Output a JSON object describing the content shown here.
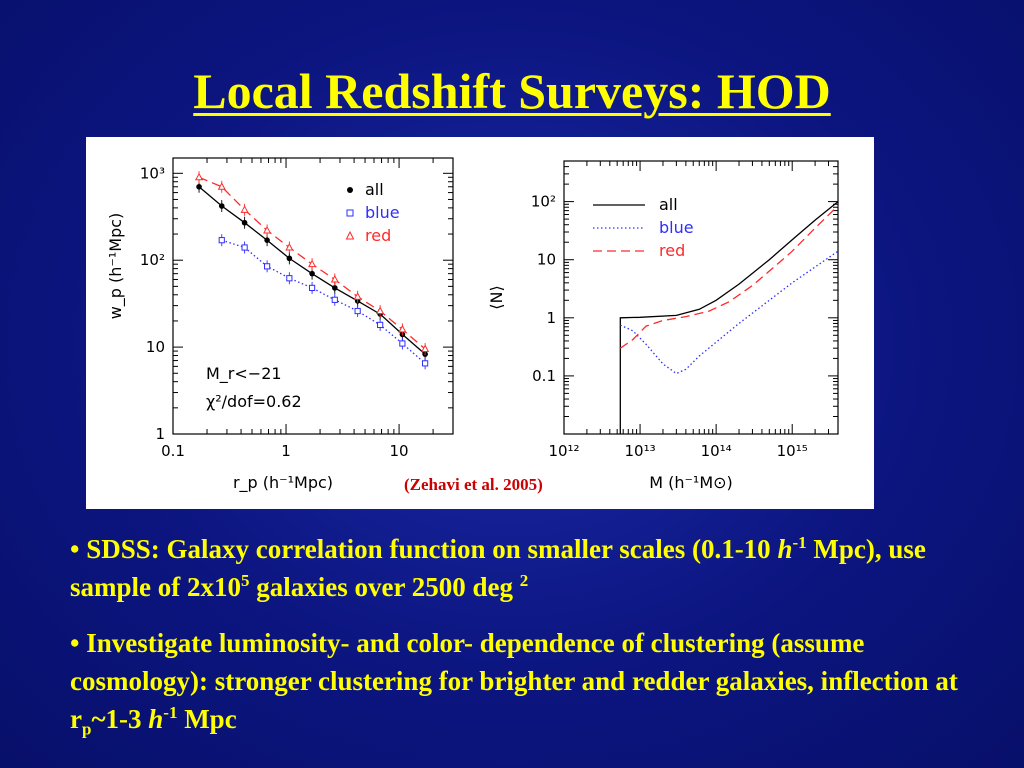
{
  "title": "Local Redshift Surveys: HOD",
  "citation": "(Zehavi et al. 2005)",
  "colors": {
    "title": "#ffff00",
    "citation": "#cc0000",
    "all": "#000000",
    "blue": "#2e2eff",
    "red": "#ff2a2a"
  },
  "chart_data": [
    {
      "type": "line",
      "xscale": "log",
      "yscale": "log",
      "xlabel": "r_p (h⁻¹Mpc)",
      "ylabel": "w_p (h⁻¹Mpc)",
      "xlim": [
        0.1,
        30
      ],
      "ylim": [
        1,
        1500
      ],
      "xticks": [
        "0.1",
        "1",
        "10"
      ],
      "yticks": [
        "1",
        "10",
        "10²",
        "10³"
      ],
      "legend_position": "top-right",
      "legend": [
        "all",
        "blue",
        "red"
      ],
      "annotations": [
        "M_r<−21",
        "χ²/dof=0.62"
      ],
      "series": [
        {
          "name": "all",
          "marker": "filled circle",
          "style": "solid",
          "x": [
            0.17,
            0.27,
            0.43,
            0.68,
            1.07,
            1.7,
            2.7,
            4.3,
            6.8,
            10.7,
            17
          ],
          "y": [
            700,
            420,
            270,
            170,
            105,
            70,
            48,
            34,
            24,
            14,
            8.3
          ]
        },
        {
          "name": "blue",
          "marker": "open square",
          "style": "dotted",
          "x": [
            0.27,
            0.43,
            0.68,
            1.07,
            1.7,
            2.7,
            4.3,
            6.8,
            10.7,
            17
          ],
          "y": [
            170,
            140,
            85,
            62,
            48,
            35,
            26,
            18,
            11,
            6.5
          ]
        },
        {
          "name": "red",
          "marker": "open triangle",
          "style": "dashed",
          "x": [
            0.17,
            0.27,
            0.43,
            0.68,
            1.07,
            1.7,
            2.7,
            4.3,
            6.8,
            10.7,
            17
          ],
          "y": [
            900,
            700,
            380,
            220,
            140,
            90,
            60,
            38,
            26,
            16,
            9.5
          ]
        }
      ]
    },
    {
      "type": "line",
      "xscale": "log",
      "yscale": "log",
      "xlabel": "M (h⁻¹M⊙)",
      "ylabel": "⟨N⟩",
      "xlim": [
        1000000000000.0,
        4000000000000000.0
      ],
      "ylim": [
        0.01,
        500
      ],
      "xticks": [
        "10¹²",
        "10¹³",
        "10¹⁴",
        "10¹⁵"
      ],
      "yticks": [
        "0.1",
        "1",
        "10",
        "10²"
      ],
      "legend_position": "top-left",
      "legend": [
        "all",
        "blue",
        "red"
      ],
      "series": [
        {
          "name": "all",
          "style": "solid",
          "x": [
            5500000000000.0,
            5500000000000.0,
            10000000000000.0,
            30000000000000.0,
            60000000000000.0,
            100000000000000.0,
            200000000000000.0,
            500000000000000.0,
            1000000000000000.0,
            2000000000000000.0,
            4000000000000000.0
          ],
          "y": [
            0.01,
            1.0,
            1.02,
            1.1,
            1.4,
            2.0,
            3.8,
            10,
            22,
            48,
            100
          ]
        },
        {
          "name": "blue",
          "style": "dotted",
          "x": [
            5500000000000.0,
            8000000000000.0,
            12000000000000.0,
            20000000000000.0,
            30000000000000.0,
            40000000000000.0,
            60000000000000.0,
            100000000000000.0,
            200000000000000.0,
            500000000000000.0,
            1000000000000000.0,
            2000000000000000.0,
            4000000000000000.0
          ],
          "y": [
            0.75,
            0.6,
            0.35,
            0.16,
            0.11,
            0.13,
            0.22,
            0.38,
            0.8,
            2.0,
            4.0,
            7.5,
            14
          ]
        },
        {
          "name": "red",
          "style": "dashed",
          "x": [
            5500000000000.0,
            8000000000000.0,
            12000000000000.0,
            20000000000000.0,
            40000000000000.0,
            80000000000000.0,
            150000000000000.0,
            300000000000000.0,
            600000000000000.0,
            1000000000000000.0,
            2000000000000000.0,
            4000000000000000.0
          ],
          "y": [
            0.3,
            0.42,
            0.72,
            0.9,
            1.05,
            1.3,
            1.9,
            3.6,
            7.8,
            14,
            35,
            85
          ]
        }
      ]
    }
  ],
  "bullets": [
    {
      "prefix": "• SDSS: Galaxy correlation function on smaller scales (0.1-10 ",
      "italic": "h",
      "sup": "-1",
      "mid": " Mpc), use sample of 2x10",
      "sup2": "5",
      "tail": " galaxies over 2500 deg ",
      "sup3": "2"
    },
    {
      "prefix": "• Investigate luminosity- and color- dependence of clustering (assume cosmology): stronger clustering for brighter and redder galaxies, inflection at r",
      "sub": "p",
      "mid": "~1-3 ",
      "italic": "h",
      "sup": "-1",
      "tail": " Mpc"
    }
  ]
}
